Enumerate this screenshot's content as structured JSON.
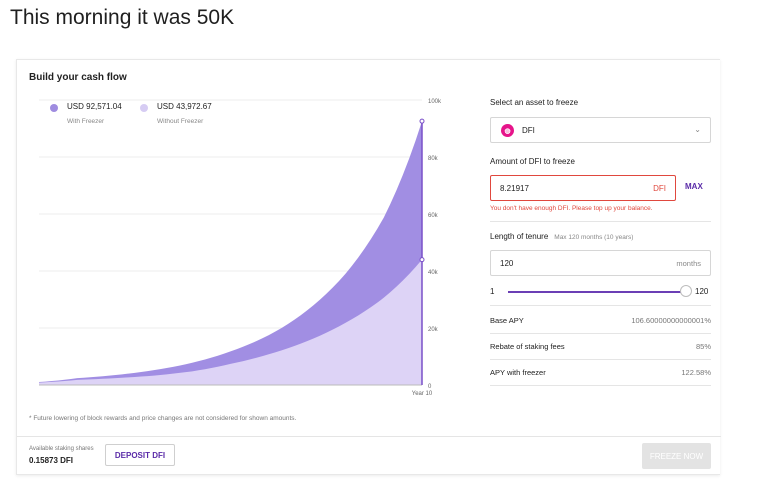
{
  "page": {
    "heading": "This morning it was 50K"
  },
  "card": {
    "title": "Build your cash flow",
    "footnote": "* Future lowering of block rewards and price changes are not considered for shown amounts."
  },
  "legend": [
    {
      "value": "USD 92,571.04",
      "sub": "With Freezer",
      "color": "#9f8ce0"
    },
    {
      "value": "USD 43,972.67",
      "sub": "Without Freezer",
      "color": "#d6ccf3"
    }
  ],
  "chart_data": {
    "type": "area",
    "x": [
      0,
      1,
      2,
      3,
      4,
      5,
      6,
      7,
      8,
      9,
      10
    ],
    "x_tick_labels": [
      "Year 10"
    ],
    "y_tick_labels": [
      "100k",
      "80k",
      "60k",
      "40k",
      "20k",
      "0"
    ],
    "ylim": [
      0,
      100000
    ],
    "series": [
      {
        "name": "With Freezer",
        "color": "#a18ee3",
        "values": [
          1050,
          2400,
          3500,
          5200,
          7800,
          11800,
          17500,
          26200,
          39000,
          58700,
          92571.04
        ]
      },
      {
        "name": "Without Freezer",
        "color": "#ddd3f6",
        "values": [
          850,
          1800,
          2400,
          3300,
          4800,
          7400,
          10800,
          15400,
          21800,
          30600,
          43972.67
        ]
      }
    ],
    "marker_color": "#7a50c9"
  },
  "right_panel": {
    "asset_label": "Select an asset to freeze",
    "asset": {
      "name": "DFI",
      "icon": "dfi-logo-icon"
    },
    "amount_label": "Amount of DFI to freeze",
    "amount_value": "8.21917",
    "amount_unit": "DFI",
    "max_label": "MAX",
    "error_text": "You don't have enough DFI. Please top up your balance.",
    "tenure_label": "Length of tenure",
    "tenure_hint": "Max 120 months (10 years)",
    "tenure_value": "120",
    "tenure_unit": "months",
    "slider": {
      "min_label": "1",
      "max_label": "120",
      "value_fraction": 1.0
    },
    "stats": [
      {
        "label": "Base APY",
        "value": "106.60000000000001%"
      },
      {
        "label": "Rebate of staking fees",
        "value": "85%"
      },
      {
        "label": "APY with freezer",
        "value": "122.58%"
      }
    ]
  },
  "footer": {
    "available_label": "Available staking shares",
    "available_value": "0.15873 DFI",
    "deposit_label": "DEPOSIT DFI",
    "freeze_label": "FREEZE NOW"
  }
}
